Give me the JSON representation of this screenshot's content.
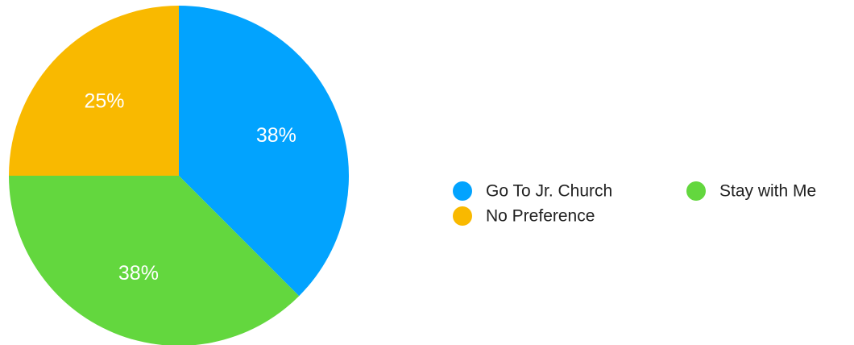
{
  "chart_data": {
    "type": "pie",
    "title": "",
    "categories": [
      "Go To Jr. Church",
      "Stay with Me",
      "No Preference"
    ],
    "values": [
      37.5,
      37.5,
      25
    ],
    "labels": [
      "38%",
      "38%",
      "25%"
    ],
    "colors": [
      "#02a3fe",
      "#63d73e",
      "#f9b900"
    ],
    "legend": {
      "placement": "right",
      "entries": [
        "Go To Jr. Church",
        "Stay with Me",
        "No Preference"
      ]
    },
    "start_angle_deg": 0,
    "direction": "clockwise"
  }
}
